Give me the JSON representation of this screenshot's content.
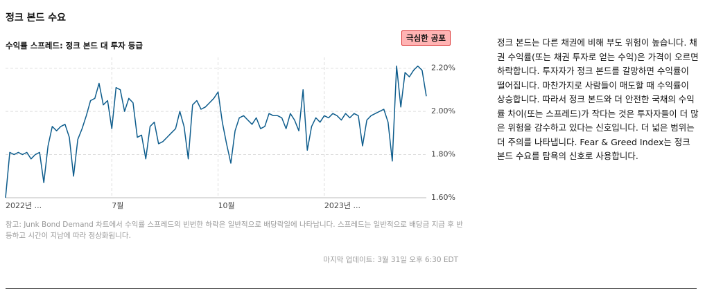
{
  "heading": "정크 본드 수요",
  "description": "정크 본드는 다른 채권에 비해 부도 위험이 높습니다. 채권 수익률(또는 채권 투자로 얻는 수익)은 가격이 오르면 하락합니다. 투자자가 정크 본드를 갈망하면 수익률이 떨어집니다. 마찬가지로 사람들이 매도할 때 수익률이 상승합니다. 따라서 정크 본드와 더 안전한 국채의 수익률 차이(또는 스프레드)가 작다는 것은 투자자들이 더 많은 위험을 감수하고 있다는 신호입니다. 더 넓은 범위는 더 주의를 나타냅니다. Fear & Greed Index는 정크 본드 수요를 탐욕의 신호로 사용합니다.",
  "note": "참고: Junk Bond Demand 차트에서 수익률 스프레드의 빈번한 하락은 일반적으로 배당락일에 나타납니다. 스프레드는 일반적으로 배당금 지급 후 반등하고 시간이 지남에 따라 정상화됩니다.",
  "updated": "마지막 업데이트: 3월 31일 오후 6:30 EDT",
  "chart_data": {
    "type": "line",
    "title": "수익률 스프레드: 정크 본드 대 투자 등급",
    "badge": "극심한 공포",
    "color": "#0d5c8c",
    "categories": [
      "2022년 ...",
      null,
      null,
      null,
      null,
      null,
      null,
      null,
      null,
      null,
      null,
      null,
      null,
      null,
      null,
      null,
      null,
      null,
      null,
      null,
      null,
      null,
      null,
      null,
      null,
      "7월",
      null,
      null,
      null,
      null,
      null,
      null,
      null,
      null,
      null,
      null,
      null,
      null,
      null,
      null,
      null,
      null,
      null,
      null,
      null,
      null,
      null,
      null,
      null,
      null,
      "10월",
      null,
      null,
      null,
      null,
      null,
      null,
      null,
      null,
      null,
      null,
      null,
      null,
      null,
      null,
      null,
      null,
      null,
      null,
      null,
      null,
      null,
      null,
      null,
      null,
      "2023년 ...",
      null,
      null,
      null,
      null,
      null,
      null,
      null,
      null,
      null,
      null,
      null,
      null,
      null,
      null,
      null,
      null,
      null,
      null,
      null,
      null,
      null,
      null,
      null,
      null
    ],
    "values": [
      1.6,
      1.81,
      1.8,
      1.81,
      1.8,
      1.81,
      1.78,
      1.8,
      1.81,
      1.67,
      1.84,
      1.93,
      1.91,
      1.93,
      1.94,
      1.88,
      1.7,
      1.87,
      1.92,
      1.98,
      2.05,
      2.06,
      2.13,
      2.03,
      2.05,
      1.92,
      2.11,
      2.1,
      2.0,
      2.06,
      2.04,
      1.88,
      1.89,
      1.78,
      1.93,
      1.95,
      1.85,
      1.86,
      1.88,
      1.9,
      1.92,
      2.0,
      1.93,
      1.78,
      2.03,
      2.05,
      2.01,
      2.02,
      2.04,
      2.06,
      2.09,
      1.95,
      1.85,
      1.76,
      1.91,
      1.97,
      1.98,
      1.96,
      1.94,
      1.97,
      1.92,
      1.93,
      1.99,
      1.98,
      1.98,
      1.97,
      1.92,
      1.99,
      1.96,
      1.91,
      2.1,
      1.82,
      1.93,
      1.97,
      1.95,
      1.98,
      1.97,
      1.99,
      1.98,
      1.96,
      1.99,
      1.97,
      1.99,
      1.98,
      1.84,
      1.96,
      1.98,
      1.99,
      2.0,
      2.01,
      1.95,
      1.77,
      2.21,
      2.02,
      2.18,
      2.16,
      2.19,
      2.21,
      2.19,
      2.07
    ],
    "ylim": [
      1.6,
      2.25
    ],
    "yticks": [
      {
        "value": 1.6,
        "label": "1.60%"
      },
      {
        "value": 1.8,
        "label": "1.80%"
      },
      {
        "value": 2.0,
        "label": "2.00%"
      },
      {
        "value": 2.2,
        "label": "2.20%"
      }
    ],
    "grid": true
  }
}
